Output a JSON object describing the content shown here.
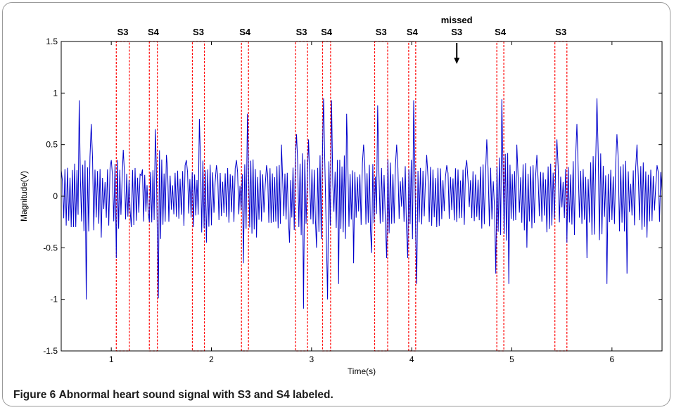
{
  "caption": {
    "label": "Figure 6",
    "text": "Abnormal heart sound signal with S3 and S4 labeled."
  },
  "chart_data": {
    "type": "line",
    "title": "",
    "xlabel": "Time(s)",
    "ylabel": "Magnitude(V)",
    "xlim": [
      0.5,
      6.5
    ],
    "ylim": [
      -1.5,
      1.5
    ],
    "xticks": [
      1,
      2,
      3,
      4,
      5,
      6
    ],
    "yticks": [
      -1.5,
      -1,
      -0.5,
      0,
      0.5,
      1,
      1.5
    ],
    "grid": false,
    "line_color": "#0000cc",
    "marker_color": "#ff0000",
    "series": [
      {
        "x": [
          0.5,
          0.6,
          0.68,
          0.75,
          0.8,
          0.9,
          1.0,
          1.05,
          1.12,
          1.2,
          1.3,
          1.38,
          1.44,
          1.47,
          1.55,
          1.65,
          1.75,
          1.82,
          1.88,
          1.95,
          2.05,
          2.15,
          2.25,
          2.32,
          2.36,
          2.45,
          2.55,
          2.62,
          2.7,
          2.78,
          2.85,
          2.92,
          2.97,
          3.05,
          3.12,
          3.16,
          3.2,
          3.27,
          3.35,
          3.42,
          3.52,
          3.6,
          3.66,
          3.75,
          3.85,
          3.96,
          4.02,
          4.05,
          4.15,
          4.25,
          4.35,
          4.45,
          4.55,
          4.65,
          4.75,
          4.84,
          4.9,
          4.97,
          5.05,
          5.15,
          5.25,
          5.35,
          5.45,
          5.55,
          5.65,
          5.75,
          5.85,
          5.95,
          6.05,
          6.15,
          6.25,
          6.35,
          6.45,
          6.5
        ],
        "y": [
          0.25,
          -0.3,
          0.93,
          -1.0,
          0.7,
          -0.4,
          0.35,
          -0.6,
          0.45,
          -0.3,
          0.2,
          -0.25,
          0.65,
          -0.99,
          0.4,
          -0.2,
          0.35,
          -0.3,
          0.75,
          -0.45,
          0.3,
          -0.2,
          0.35,
          -0.65,
          0.8,
          -0.4,
          0.3,
          -0.25,
          0.5,
          -0.45,
          0.6,
          -1.09,
          0.55,
          -0.5,
          0.95,
          -1.0,
          0.93,
          -0.85,
          0.8,
          -0.65,
          0.5,
          -0.55,
          0.88,
          -0.6,
          0.5,
          -0.6,
          0.93,
          -0.85,
          0.4,
          -0.3,
          0.3,
          -0.25,
          0.35,
          -0.2,
          0.55,
          -0.75,
          0.94,
          -0.85,
          0.5,
          -0.5,
          0.4,
          -0.35,
          0.55,
          -0.45,
          0.7,
          -0.6,
          0.95,
          -0.85,
          0.6,
          -0.75,
          0.5,
          -0.4,
          0.3,
          0.05
        ]
      }
    ],
    "markers": [
      {
        "label": "S3",
        "x0": 1.05,
        "x1": 1.18
      },
      {
        "label": "S4",
        "x0": 1.38,
        "x1": 1.46
      },
      {
        "label": "S3",
        "x0": 1.81,
        "x1": 1.93
      },
      {
        "label": "S4",
        "x0": 2.3,
        "x1": 2.37
      },
      {
        "label": "S3",
        "x0": 2.84,
        "x1": 2.96
      },
      {
        "label": "S4",
        "x0": 3.11,
        "x1": 3.19
      },
      {
        "label": "S3",
        "x0": 3.63,
        "x1": 3.76
      },
      {
        "label": "S4",
        "x0": 3.97,
        "x1": 4.04
      },
      {
        "label": "S4",
        "x0": 4.85,
        "x1": 4.92
      },
      {
        "label": "S3",
        "x0": 5.43,
        "x1": 5.55
      }
    ],
    "annotations": [
      {
        "line1": "missed",
        "line2": "S3",
        "x": 4.45
      }
    ]
  }
}
